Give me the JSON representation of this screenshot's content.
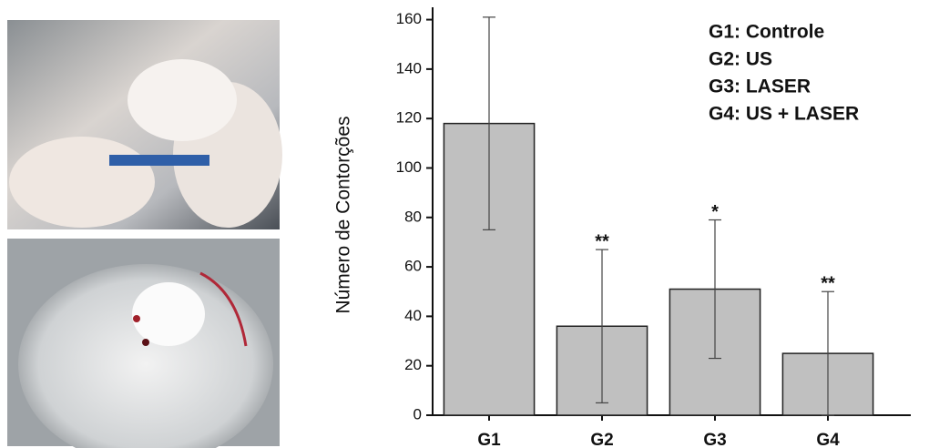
{
  "chart_data": {
    "type": "bar",
    "y_label": "Número de Contorções",
    "categories": [
      "G1",
      "G2",
      "G3",
      "G4"
    ],
    "values": [
      118,
      36,
      51,
      25
    ],
    "errors": [
      43,
      31,
      28,
      25
    ],
    "significance": [
      null,
      "**",
      "*",
      "**"
    ],
    "legend_text": [
      "G1: Controle",
      "G2: US",
      "G3: LASER",
      "G4: US + LASER"
    ],
    "color": "#c0c0c0",
    "ylim": [
      0,
      165
    ],
    "yticks": [
      0,
      20,
      40,
      60,
      80,
      100,
      120,
      140,
      160
    ]
  }
}
